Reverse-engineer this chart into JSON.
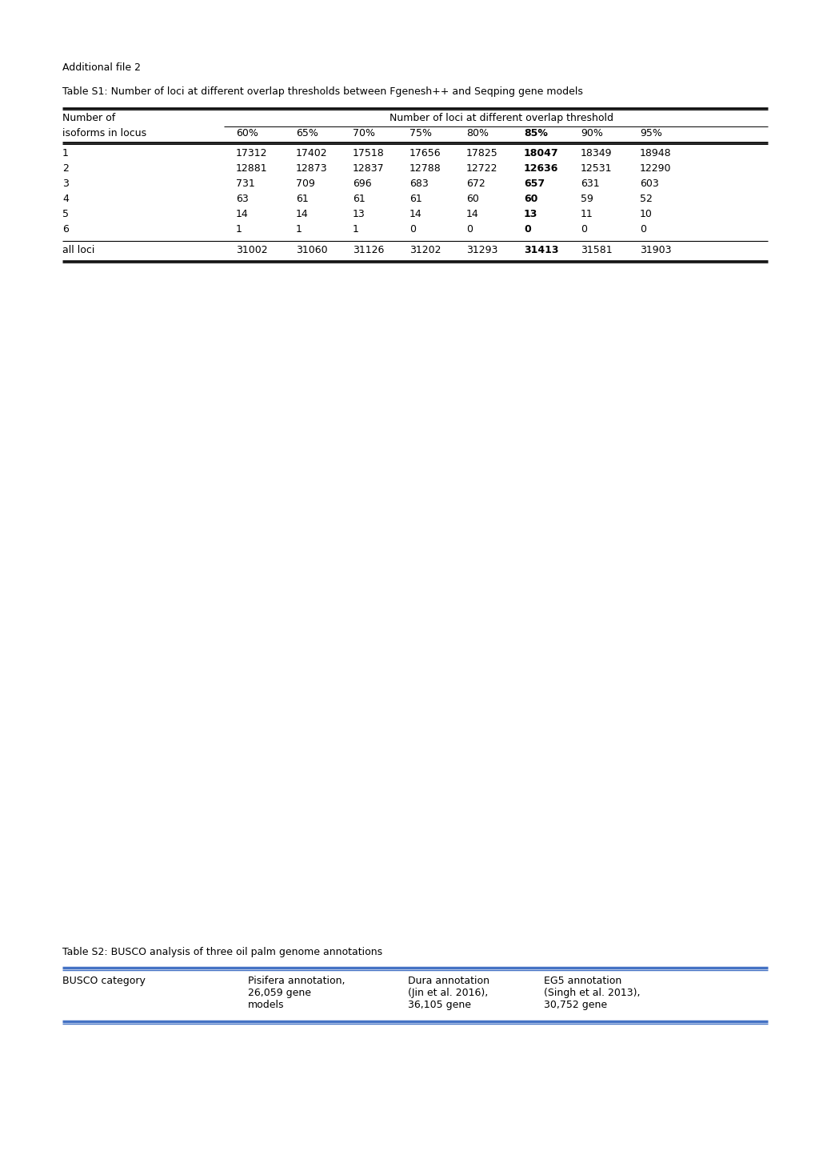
{
  "page_title": "Additional file 2",
  "table1_title": "Table S1: Number of loci at different overlap thresholds between Fgenesh++ and Seqping gene models",
  "table1_header_group": "Number of loci at different overlap threshold",
  "table1_col1_header_line1": "Number of",
  "table1_col1_header_line2": "isoforms in locus",
  "table1_thresholds": [
    "60%",
    "65%",
    "70%",
    "75%",
    "80%",
    "85%",
    "90%",
    "95%"
  ],
  "table1_bold_col": 5,
  "table1_rows": [
    [
      "1",
      "17312",
      "17402",
      "17518",
      "17656",
      "17825",
      "18047",
      "18349",
      "18948"
    ],
    [
      "2",
      "12881",
      "12873",
      "12837",
      "12788",
      "12722",
      "12636",
      "12531",
      "12290"
    ],
    [
      "3",
      "731",
      "709",
      "696",
      "683",
      "672",
      "657",
      "631",
      "603"
    ],
    [
      "4",
      "63",
      "61",
      "61",
      "61",
      "60",
      "60",
      "59",
      "52"
    ],
    [
      "5",
      "14",
      "14",
      "13",
      "14",
      "14",
      "13",
      "11",
      "10"
    ],
    [
      "6",
      "1",
      "1",
      "1",
      "0",
      "0",
      "0",
      "0",
      "0"
    ]
  ],
  "table1_footer": [
    "all loci",
    "31002",
    "31060",
    "31126",
    "31202",
    "31293",
    "31413",
    "31581",
    "31903"
  ],
  "table2_title": "Table S2: BUSCO analysis of three oil palm genome annotations",
  "table2_col0": "BUSCO category",
  "table2_col1_lines": [
    "Pisifera annotation,",
    "26,059 gene",
    "models"
  ],
  "table2_col2_lines": [
    "Dura annotation",
    "(Jin et al. 2016),",
    "36,105 gene"
  ],
  "table2_col3_lines": [
    "EG5 annotation",
    "(Singh et al. 2013),",
    "30,752 gene"
  ],
  "line_color_black": "#000000",
  "line_color_blue": "#4472C4",
  "bg_color": "#ffffff",
  "text_color": "#000000",
  "font_size": 9.0
}
